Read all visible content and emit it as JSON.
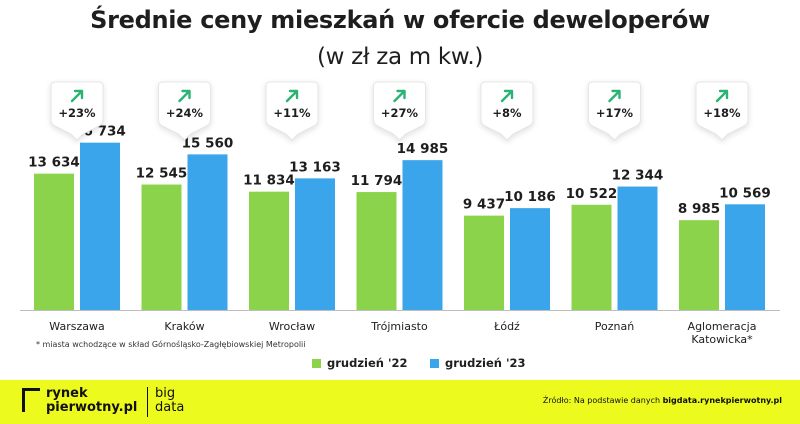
{
  "header": {
    "title": "Średnie ceny mieszkań w ofercie deweloperów",
    "subtitle": "(w zł za m kw.)"
  },
  "legend": {
    "series1": "grudzień '22",
    "series2": "grudzień '23"
  },
  "footnote": "* miasta wchodzące w skład Górnośląsko-Zagłębiowskiej Metropolii",
  "footer": {
    "logo_line1": "rynek",
    "logo_line2": "pierwotny.pl",
    "logo_line3": "big",
    "logo_line4": "data",
    "source_prefix": "Źródło: Na podstawie danych ",
    "source_link": "bigdata.rynekpierwotny.pl"
  },
  "colors": {
    "series1": "#8cd34c",
    "series2": "#3aa5ea",
    "arrow": "#2ab373",
    "footer_bg": "#ecfa1e"
  },
  "chart_data": {
    "type": "bar",
    "categories": [
      "Warszawa",
      "Kraków",
      "Wrocław",
      "Trójmiasto",
      "Łódź",
      "Poznań",
      "Aglomeracja\nKatowicka*"
    ],
    "series": [
      {
        "name": "grudzień '22",
        "values": [
          13634,
          12545,
          11834,
          11794,
          9437,
          10522,
          8985
        ],
        "labels": [
          "13 634",
          "12 545",
          "11 834",
          "11 794",
          "9 437",
          "10 522",
          "8 985"
        ]
      },
      {
        "name": "grudzień '23",
        "values": [
          16734,
          15560,
          13163,
          14985,
          10186,
          12344,
          10569
        ],
        "labels": [
          "16 734",
          "15 560",
          "13 163",
          "14 985",
          "10 186",
          "12 344",
          "10 569"
        ]
      }
    ],
    "changes": [
      "+23%",
      "+24%",
      "+11%",
      "+27%",
      "+8%",
      "+17%",
      "+18%"
    ],
    "ylim": [
      0,
      18000
    ],
    "grid": false,
    "legend_position": "bottom-center"
  }
}
